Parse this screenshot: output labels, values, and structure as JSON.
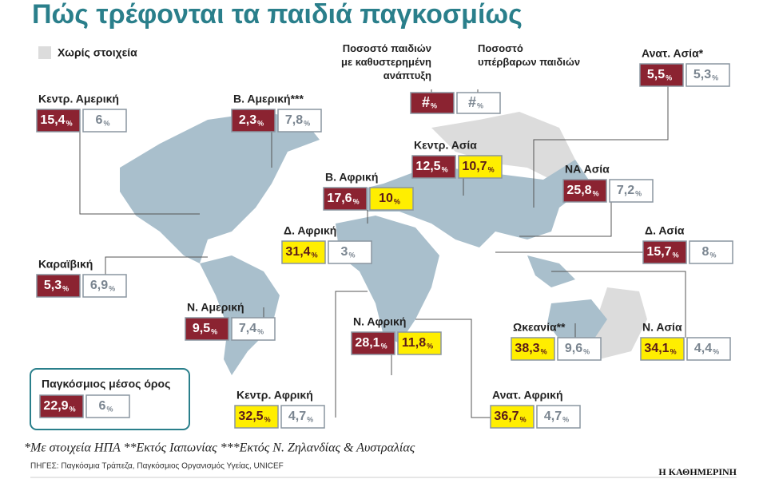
{
  "title": "Πώς τρέφονται τα παιδιά παγκοσμίως",
  "legend": {
    "no_data": "Χωρίς στοιχεία",
    "stunting": "Ποσοστό παιδιών με καθυστερημένη ανάπτυξη",
    "overweight": "Ποσοστό υπέρβαρων παιδιών",
    "placeholder": "#",
    "colors": [
      "#8b2331",
      "#ffffff"
    ]
  },
  "unit": "%",
  "regions": [
    {
      "name": "Κεντρ. Αμερική",
      "stunting": "15,4",
      "overweight": "6",
      "colors": [
        "#8b2331",
        "#ffffff"
      ]
    },
    {
      "name": "Β. Αμερική***",
      "stunting": "2,3",
      "overweight": "7,8",
      "colors": [
        "#8b2331",
        "#ffffff"
      ]
    },
    {
      "name": "Ανατ. Ασία*",
      "stunting": "5,5",
      "overweight": "5,3",
      "colors": [
        "#8b2331",
        "#ffffff"
      ]
    },
    {
      "name": "Κεντρ. Ασία",
      "stunting": "12,5",
      "overweight": "10,7",
      "colors": [
        "#8b2331",
        "#ffee00"
      ]
    },
    {
      "name": "Β. Αφρική",
      "stunting": "17,6",
      "overweight": "10",
      "colors": [
        "#8b2331",
        "#ffee00"
      ]
    },
    {
      "name": "ΝΑ Ασία",
      "stunting": "25,8",
      "overweight": "7,2",
      "colors": [
        "#8b2331",
        "#ffffff"
      ]
    },
    {
      "name": "Δ. Αφρική",
      "stunting": "31,4",
      "overweight": "3",
      "colors": [
        "#ffee00",
        "#ffffff"
      ]
    },
    {
      "name": "Δ. Ασία",
      "stunting": "15,7",
      "overweight": "8",
      "colors": [
        "#8b2331",
        "#ffffff"
      ]
    },
    {
      "name": "Καραϊβική",
      "stunting": "5,3",
      "overweight": "6,9",
      "colors": [
        "#8b2331",
        "#ffffff"
      ]
    },
    {
      "name": "Ν. Αμερική",
      "stunting": "9,5",
      "overweight": "7,4",
      "colors": [
        "#8b2331",
        "#ffffff"
      ]
    },
    {
      "name": "Ν. Αφρική",
      "stunting": "28,1",
      "overweight": "11,8",
      "colors": [
        "#8b2331",
        "#ffee00"
      ]
    },
    {
      "name": "Ωκεανία**",
      "stunting": "38,3",
      "overweight": "9,6",
      "colors": [
        "#ffee00",
        "#ffffff"
      ]
    },
    {
      "name": "Ν. Ασία",
      "stunting": "34,1",
      "overweight": "4,4",
      "colors": [
        "#ffee00",
        "#ffffff"
      ]
    },
    {
      "name": "Κεντρ. Αφρική",
      "stunting": "32,5",
      "overweight": "4,7",
      "colors": [
        "#ffee00",
        "#ffffff"
      ]
    },
    {
      "name": "Ανατ. Αφρική",
      "stunting": "36,7",
      "overweight": "4,7",
      "colors": [
        "#ffee00",
        "#ffffff"
      ]
    }
  ],
  "world": {
    "name": "Παγκόσμιος μέσος όρος",
    "stunting": "22,9",
    "overweight": "6",
    "colors": [
      "#8b2331",
      "#ffffff"
    ]
  },
  "footnote": "*Με στοιχεία ΗΠΑ **Εκτός Ιαπωνίας ***Εκτός Ν. Ζηλανδίας & Αυστραλίας",
  "sources": "ΠΗΓΕΣ: Παγκόσμια Τράπεζα, Παγκόσμιος Οργανισμός Υγείας, UNICEF",
  "brand": "Η ΚΑΘΗΜΕΡΙΝΗ"
}
